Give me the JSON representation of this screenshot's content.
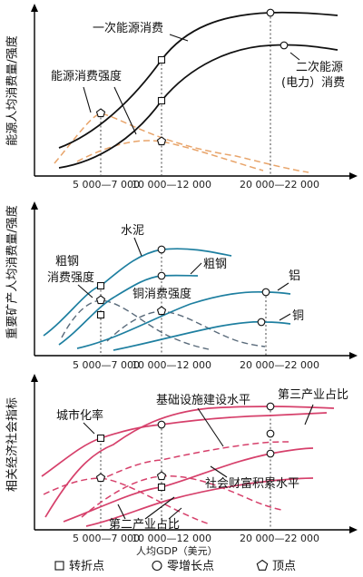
{
  "colors": {
    "energy_curve": "#111111",
    "energy_intensity": "#e8a46a",
    "minerals_curve": "#1e7fa0",
    "minerals_intensity": "#5a6b7b",
    "social_curve": "#d6406b"
  },
  "panels": {
    "energy": {
      "ylabel": "能源人均消费量/强度",
      "ann_primary": "一次能源消费",
      "ann_secondary_l1": "二次能源",
      "ann_secondary_l2": "(电力）消费",
      "ann_intensity": "能源消费强度",
      "ticks": [
        "5 000—7 000",
        "10 000—12 000",
        "20 000—22 000"
      ]
    },
    "minerals": {
      "ylabel": "重要矿产人均消费量/强度",
      "ann_cement": "水泥",
      "ann_steel": "粗钢",
      "ann_steel_int_l1": "粗钢",
      "ann_steel_int_l2": "消费强度",
      "ann_copper_int": "铜消费强度",
      "ann_aluminum": "铝",
      "ann_copper": "铜",
      "ticks": [
        "5 000—7 000",
        "10 000—12 000",
        "20 000—22 000"
      ]
    },
    "social": {
      "ylabel": "相关经济社会指标",
      "ann_urban": "城市化率",
      "ann_infra": "基础设施建设水平",
      "ann_tertiary": "第三产业占比",
      "ann_wealth": "社会财富积累水平",
      "ann_secondary_ind": "第二产业占比",
      "ticks": [
        "5 000—7 000",
        "10 000—12 000",
        "20 000—22 000"
      ],
      "xlabel": "人均GDP（美元）"
    }
  },
  "legend": {
    "turning_point": "转折点",
    "zero_growth": "零增长点",
    "peak": "顶点"
  }
}
